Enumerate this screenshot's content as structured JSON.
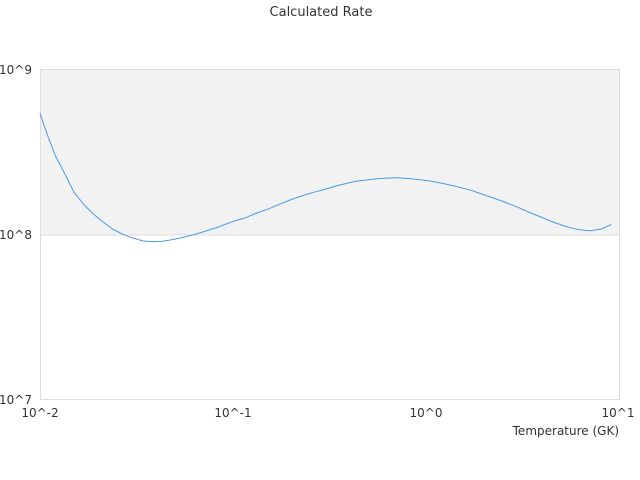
{
  "chart_data": {
    "type": "line",
    "title": "Calculated Rate",
    "xlabel": "Temperature (GK)",
    "ylabel": "",
    "x_scale": "log",
    "y_scale": "log",
    "xlim": [
      0.01,
      10
    ],
    "ylim": [
      10000000,
      1000000000
    ],
    "x_tick_labels": [
      "10^-2",
      "10^-1",
      "10^0",
      "10^1"
    ],
    "y_tick_labels": [
      "10^9",
      "10^8",
      "10^7"
    ],
    "highlight_band": [
      100000000,
      1000000000
    ],
    "line_color": "#4a9be8",
    "band_color": "#f2f2f2",
    "series": [
      {
        "x": [
          0.01,
          0.011,
          0.012,
          0.0135,
          0.015,
          0.017,
          0.019,
          0.021,
          0.024,
          0.027,
          0.03,
          0.034,
          0.038,
          0.043,
          0.048,
          0.055,
          0.063,
          0.072,
          0.082,
          0.09,
          0.1,
          0.115,
          0.13,
          0.15,
          0.17,
          0.2,
          0.23,
          0.26,
          0.3,
          0.35,
          0.4,
          0.45,
          0.5,
          0.55,
          0.6,
          0.65,
          0.7,
          0.8,
          0.9,
          1.0,
          1.2,
          1.4,
          1.7,
          2.0,
          2.5,
          3.0,
          3.5,
          4.0,
          4.5,
          5.0,
          5.5,
          6.0,
          6.5,
          7.0,
          8.0,
          9.0
        ],
        "y": [
          540000000,
          390000000,
          300000000,
          230000000,
          180000000,
          150000000,
          132000000,
          120000000,
          107000000,
          100000000,
          95500000,
          91500000,
          90500000,
          91000000,
          93000000,
          96000000,
          100000000,
          105000000,
          110000000,
          115000000,
          120000000,
          126000000,
          134000000,
          142000000,
          151000000,
          163000000,
          172000000,
          180000000,
          188000000,
          198000000,
          206000000,
          211000000,
          214000000,
          217000000,
          218500000,
          219500000,
          220000000,
          218000000,
          215000000,
          212000000,
          204000000,
          196000000,
          185000000,
          173000000,
          158000000,
          145000000,
          134000000,
          126000000,
          119000000,
          114000000,
          110000000,
          107500000,
          106000000,
          105500000,
          108000000,
          115000000
        ]
      }
    ]
  }
}
